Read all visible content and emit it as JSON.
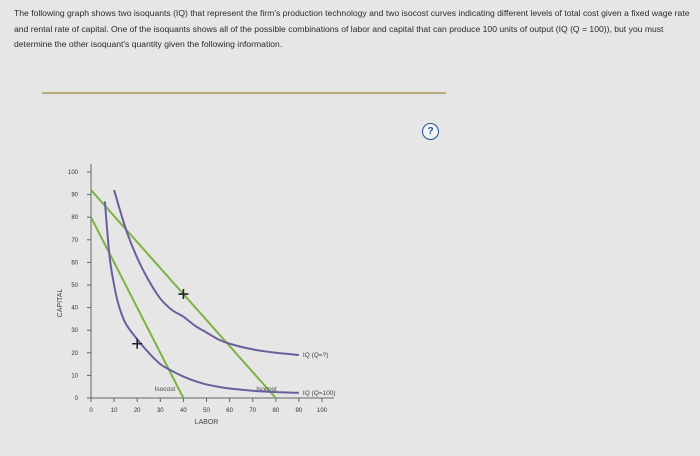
{
  "intro_text": "The following graph shows two isoquants (IQ) that represent the firm's production technology and two isocost curves indicating different levels of total cost given a fixed wage rate and rental rate of capital. One of the isoquants shows all of the possible combinations of labor and capital that can produce 100 units of output (IQ (Q = 100)), but you must determine the other isoquant's quantity given the following information.",
  "help_label": "?",
  "chart_data": {
    "type": "line",
    "xlabel": "LABOR",
    "ylabel": "CAPITAL",
    "xlim": [
      0,
      100
    ],
    "ylim": [
      0,
      100
    ],
    "xticks": [
      0,
      10,
      20,
      30,
      40,
      50,
      60,
      70,
      80,
      90,
      100
    ],
    "yticks": [
      0,
      10,
      20,
      30,
      40,
      50,
      60,
      70,
      80,
      90,
      100
    ],
    "isocosts": [
      {
        "name": "Isocost",
        "points": [
          [
            0,
            80
          ],
          [
            40,
            0
          ]
        ],
        "color": "#7bb342"
      },
      {
        "name": "Isocost",
        "points": [
          [
            0,
            92
          ],
          [
            80,
            0
          ]
        ],
        "color": "#7bb342"
      }
    ],
    "isoquants": [
      {
        "name": "IQ (Q=?)",
        "color": "#6a5f9d",
        "points": [
          [
            10,
            92
          ],
          [
            15,
            75
          ],
          [
            20,
            62
          ],
          [
            25,
            52
          ],
          [
            30,
            44
          ],
          [
            35,
            39
          ],
          [
            40,
            36
          ],
          [
            45,
            32
          ],
          [
            50,
            29
          ],
          [
            55,
            26
          ],
          [
            60,
            24
          ],
          [
            70,
            21.5
          ],
          [
            80,
            20
          ],
          [
            90,
            19
          ]
        ]
      },
      {
        "name": "IQ (Q=100)",
        "color": "#6a5f9d",
        "points": [
          [
            6,
            87
          ],
          [
            8,
            63
          ],
          [
            10,
            50
          ],
          [
            12,
            41
          ],
          [
            15,
            33
          ],
          [
            20,
            26
          ],
          [
            25,
            20
          ],
          [
            30,
            15
          ],
          [
            35,
            12
          ],
          [
            40,
            9.5
          ],
          [
            45,
            7.5
          ],
          [
            50,
            6
          ],
          [
            55,
            5
          ],
          [
            60,
            4.2
          ],
          [
            70,
            3.2
          ],
          [
            80,
            2.6
          ],
          [
            90,
            2.3
          ]
        ]
      }
    ],
    "points": [
      {
        "x": 20,
        "y": 24
      },
      {
        "x": 40,
        "y": 46
      }
    ]
  }
}
